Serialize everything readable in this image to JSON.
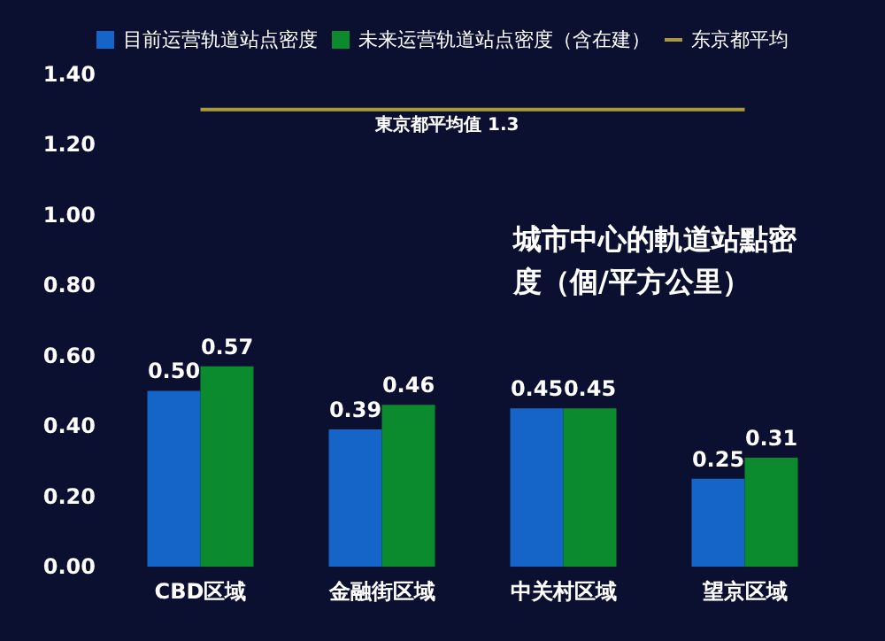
{
  "chart_data": {
    "type": "bar",
    "title": "城市中心的軌道站點密度（個/平方公里）",
    "categories": [
      "CBD区域",
      "金融街区域",
      "中关村区域",
      "望京区域"
    ],
    "series": [
      {
        "name": "目前运营轨道站点密度",
        "color": "#1565c8",
        "values": [
          0.5,
          0.39,
          0.45,
          0.25
        ],
        "value_labels": [
          "0.50",
          "0.39",
          "0.45",
          "0.25"
        ]
      },
      {
        "name": "未来运营轨道站点密度（含在建）",
        "color": "#0b8a2e",
        "values": [
          0.57,
          0.46,
          0.45,
          0.31
        ],
        "value_labels": [
          "0.57",
          "0.46",
          "0.45",
          "0.31"
        ]
      },
      {
        "name": "东京都平均",
        "type": "line",
        "color": "#a89a3a",
        "values": [
          1.3,
          1.3,
          1.3,
          1.3
        ],
        "marker": "none"
      }
    ],
    "annotations": [
      {
        "text": "東京都平均值 1.3",
        "y": 1.3
      }
    ],
    "ylim": [
      0,
      1.4
    ],
    "yticks": [
      {
        "value": 0,
        "label": "0.00"
      },
      {
        "value": 0.2,
        "label": "0.20"
      },
      {
        "value": 0.4,
        "label": "0.40"
      },
      {
        "value": 0.6,
        "label": "0.60"
      },
      {
        "value": 0.8,
        "label": "0.80"
      },
      {
        "value": 1,
        "label": "1.00"
      },
      {
        "value": 1.2,
        "label": "1.20"
      },
      {
        "value": 1.4,
        "label": "1.40"
      }
    ],
    "grid": false,
    "legend": "top"
  }
}
